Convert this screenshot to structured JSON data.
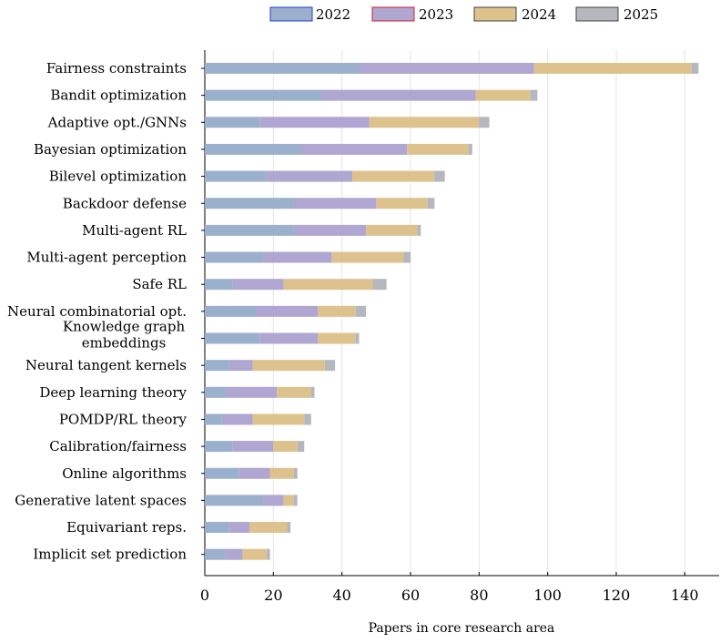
{
  "chart_data": {
    "type": "bar",
    "orientation": "horizontal",
    "stacked": true,
    "xlabel": "Papers in core research area",
    "xlim": [
      0,
      150
    ],
    "xticks": [
      0,
      20,
      40,
      60,
      80,
      100,
      120,
      140
    ],
    "grid": true,
    "legend_placement": "top",
    "categories": [
      "Fairness constraints",
      "Bandit optimization",
      "Adaptive opt./GNNs",
      "Bayesian optimization",
      "Bilevel optimization",
      "Backdoor defense",
      "Multi-agent RL",
      "Multi-agent perception",
      "Safe RL",
      "Neural combinatorial opt.",
      "Knowledge graph embeddings",
      "Neural tangent kernels",
      "Deep learning theory",
      "POMDP/RL theory",
      "Calibration/fairness",
      "Online algorithms",
      "Generative latent spaces",
      "Equivariant reps.",
      "Implicit set prediction"
    ],
    "series": [
      {
        "name": "2022",
        "color": "#9ab0cc",
        "legend_border": "#1f3fd0",
        "values": [
          45,
          34,
          16,
          28,
          18,
          26,
          26,
          17,
          8,
          15,
          16,
          7,
          6,
          5,
          8,
          10,
          17,
          7,
          6
        ]
      },
      {
        "name": "2023",
        "color": "#afa6d2",
        "legend_border": "#d0202a",
        "values": [
          51,
          45,
          32,
          31,
          25,
          24,
          21,
          20,
          15,
          18,
          17,
          7,
          15,
          9,
          12,
          9,
          6,
          6,
          5
        ]
      },
      {
        "name": "2024",
        "color": "#dec28e",
        "legend_border": "#444444",
        "values": [
          46,
          16,
          32,
          18,
          24,
          15,
          15,
          21,
          26,
          11,
          11,
          21,
          10,
          15,
          7,
          7,
          3,
          11,
          7
        ]
      },
      {
        "name": "2025",
        "color": "#b4b7be",
        "legend_border": "#444444",
        "values": [
          2,
          2,
          3,
          1,
          3,
          2,
          1,
          2,
          4,
          3,
          1,
          3,
          1,
          2,
          2,
          1,
          1,
          1,
          1
        ]
      }
    ]
  }
}
